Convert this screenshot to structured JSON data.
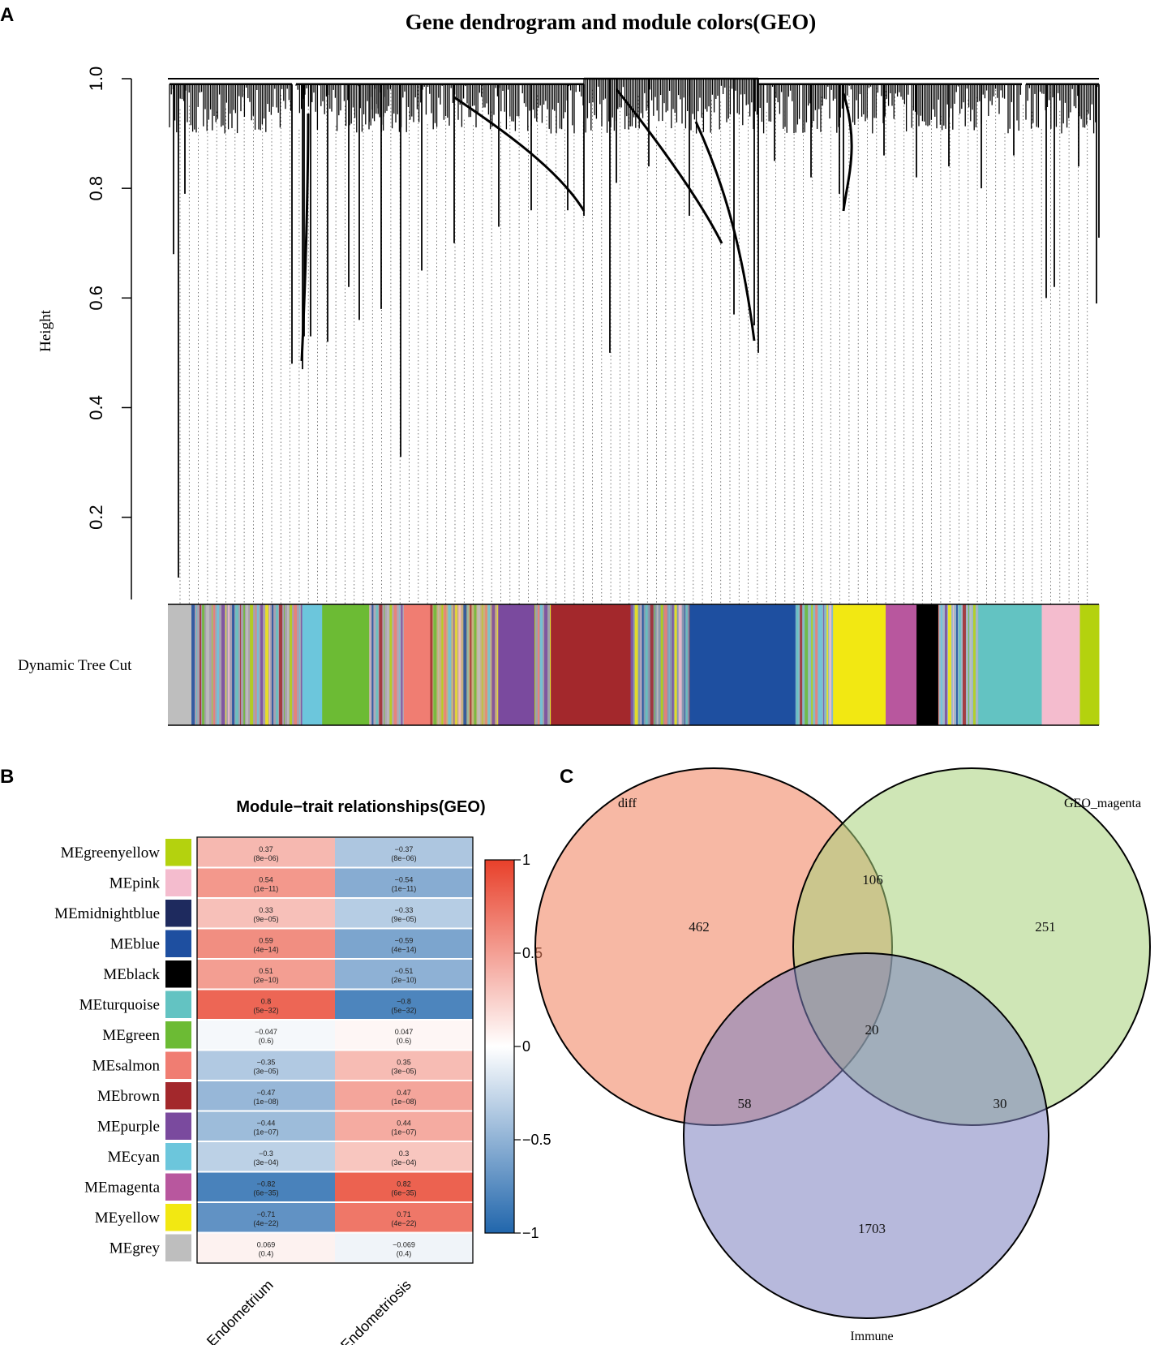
{
  "panels": {
    "A": "A",
    "B": "B",
    "C": "C"
  },
  "chart_data": [
    {
      "type": "dendrogram",
      "title": "Gene dendrogram and module colors(GEO)",
      "ylabel": "Height",
      "ylim": [
        0.05,
        1.0
      ],
      "yticks": [
        "0.2",
        "0.4",
        "0.6",
        "0.8",
        "1.0"
      ],
      "ytick_values": [
        0.2,
        0.4,
        0.6,
        0.8,
        1.0
      ],
      "color_bar_label": "Dynamic Tree Cut",
      "modules_in_order": [
        {
          "name": "grey",
          "color": "#bebebe",
          "share": 2.6
        },
        {
          "name": "mixed",
          "color": "#a8a0b0",
          "share": 12.2
        },
        {
          "name": "cyan",
          "color": "#6cc6dc",
          "share": 2.2
        },
        {
          "name": "green",
          "color": "#6cbb34",
          "share": 5.2
        },
        {
          "name": "mixed",
          "color": "#b0a8b8",
          "share": 3.8
        },
        {
          "name": "salmon",
          "color": "#f07d72",
          "share": 2.9
        },
        {
          "name": "mixed",
          "color": "#c8b080",
          "share": 7.5
        },
        {
          "name": "purple",
          "color": "#7a4a9e",
          "share": 4.0
        },
        {
          "name": "mixed",
          "color": "#a0a0a8",
          "share": 1.8
        },
        {
          "name": "brown",
          "color": "#a3282c",
          "share": 8.8
        },
        {
          "name": "mixed",
          "color": "#8898b0",
          "share": 6.5
        },
        {
          "name": "blue",
          "color": "#1e4fa0",
          "share": 11.6
        },
        {
          "name": "mixed",
          "color": "#88b8c8",
          "share": 4.2
        },
        {
          "name": "yellow",
          "color": "#f2e812",
          "share": 5.8
        },
        {
          "name": "magenta",
          "color": "#b8579e",
          "share": 3.4
        },
        {
          "name": "black",
          "color": "#000000",
          "share": 2.4
        },
        {
          "name": "mixed",
          "color": "#a0b8c8",
          "share": 4.4
        },
        {
          "name": "turquoise",
          "color": "#63c3c2",
          "share": 7.0
        },
        {
          "name": "pink",
          "color": "#f4bcce",
          "share": 4.2
        },
        {
          "name": "greenyellow",
          "color": "#b4d20e",
          "share": 2.1
        }
      ]
    },
    {
      "type": "heatmap",
      "title": "Module−trait relationships(GEO)",
      "columns": [
        "Endometrium",
        "Endometriosis"
      ],
      "rows": [
        {
          "module": "MEgreenyellow",
          "color": "#b4d20e",
          "cells": [
            {
              "r": 0.37,
              "label": "0.37",
              "p": "(8e−06)"
            },
            {
              "r": -0.37,
              "label": "−0.37",
              "p": "(8e−06)"
            }
          ]
        },
        {
          "module": "MEpink",
          "color": "#f4bcce",
          "cells": [
            {
              "r": 0.54,
              "label": "0.54",
              "p": "(1e−11)"
            },
            {
              "r": -0.54,
              "label": "−0.54",
              "p": "(1e−11)"
            }
          ]
        },
        {
          "module": "MEmidnightblue",
          "color": "#1e2a5e",
          "cells": [
            {
              "r": 0.33,
              "label": "0.33",
              "p": "(9e−05)"
            },
            {
              "r": -0.33,
              "label": "−0.33",
              "p": "(9e−05)"
            }
          ]
        },
        {
          "module": "MEblue",
          "color": "#1e4fa0",
          "cells": [
            {
              "r": 0.59,
              "label": "0.59",
              "p": "(4e−14)"
            },
            {
              "r": -0.59,
              "label": "−0.59",
              "p": "(4e−14)"
            }
          ]
        },
        {
          "module": "MEblack",
          "color": "#000000",
          "cells": [
            {
              "r": 0.51,
              "label": "0.51",
              "p": "(2e−10)"
            },
            {
              "r": -0.51,
              "label": "−0.51",
              "p": "(2e−10)"
            }
          ]
        },
        {
          "module": "MEturquoise",
          "color": "#63c3c2",
          "cells": [
            {
              "r": 0.8,
              "label": "0.8",
              "p": "(5e−32)"
            },
            {
              "r": -0.8,
              "label": "−0.8",
              "p": "(5e−32)"
            }
          ]
        },
        {
          "module": "MEgreen",
          "color": "#6cbb34",
          "cells": [
            {
              "r": -0.047,
              "label": "−0.047",
              "p": "(0.6)"
            },
            {
              "r": 0.047,
              "label": "0.047",
              "p": "(0.6)"
            }
          ]
        },
        {
          "module": "MEsalmon",
          "color": "#f07d72",
          "cells": [
            {
              "r": -0.35,
              "label": "−0.35",
              "p": "(3e−05)"
            },
            {
              "r": 0.35,
              "label": "0.35",
              "p": "(3e−05)"
            }
          ]
        },
        {
          "module": "MEbrown",
          "color": "#a3282c",
          "cells": [
            {
              "r": -0.47,
              "label": "−0.47",
              "p": "(1e−08)"
            },
            {
              "r": 0.47,
              "label": "0.47",
              "p": "(1e−08)"
            }
          ]
        },
        {
          "module": "MEpurple",
          "color": "#7a4a9e",
          "cells": [
            {
              "r": -0.44,
              "label": "−0.44",
              "p": "(1e−07)"
            },
            {
              "r": 0.44,
              "label": "0.44",
              "p": "(1e−07)"
            }
          ]
        },
        {
          "module": "MEcyan",
          "color": "#6cc6dc",
          "cells": [
            {
              "r": -0.3,
              "label": "−0.3",
              "p": "(3e−04)"
            },
            {
              "r": 0.3,
              "label": "0.3",
              "p": "(3e−04)"
            }
          ]
        },
        {
          "module": "MEmagenta",
          "color": "#b8579e",
          "cells": [
            {
              "r": -0.82,
              "label": "−0.82",
              "p": "(6e−35)"
            },
            {
              "r": 0.82,
              "label": "0.82",
              "p": "(6e−35)"
            }
          ]
        },
        {
          "module": "MEyellow",
          "color": "#f2e812",
          "cells": [
            {
              "r": -0.71,
              "label": "−0.71",
              "p": "(4e−22)"
            },
            {
              "r": 0.71,
              "label": "0.71",
              "p": "(4e−22)"
            }
          ]
        },
        {
          "module": "MEgrey",
          "color": "#bebebe",
          "cells": [
            {
              "r": 0.069,
              "label": "0.069",
              "p": "(0.4)"
            },
            {
              "r": -0.069,
              "label": "−0.069",
              "p": "(0.4)"
            }
          ]
        }
      ],
      "colorbar": {
        "range": [
          -1,
          1
        ],
        "ticks": [
          "1",
          "0.5",
          "0",
          "−0.5",
          "−1"
        ],
        "tick_values": [
          1,
          0.5,
          0,
          -0.5,
          -1
        ],
        "low_color": "#2166ac",
        "mid_color": "#ffffff",
        "high_color": "#e8402a"
      }
    },
    {
      "type": "venn",
      "sets": [
        {
          "name": "diff",
          "color": "#f07d5a"
        },
        {
          "name": "GEO_magenta",
          "color": "#a8d27a"
        },
        {
          "name": "Immune",
          "color": "#7b7fbf"
        }
      ],
      "regions": {
        "diff_only": 462,
        "geo_only": 251,
        "immune_only": 1703,
        "diff_geo": 106,
        "diff_immune": 58,
        "geo_immune": 30,
        "all": 20
      },
      "region_labels": {
        "diff_only": "462",
        "geo_only": "251",
        "immune_only": "1703",
        "diff_geo": "106",
        "diff_immune": "58",
        "geo_immune": "30",
        "all": "20"
      }
    }
  ]
}
